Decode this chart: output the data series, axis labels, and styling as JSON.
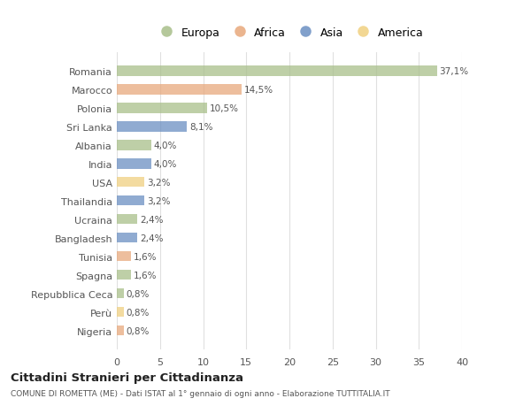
{
  "countries": [
    "Romania",
    "Marocco",
    "Polonia",
    "Sri Lanka",
    "Albania",
    "India",
    "USA",
    "Thailandia",
    "Ucraina",
    "Bangladesh",
    "Tunisia",
    "Spagna",
    "Repubblica Ceca",
    "Perù",
    "Nigeria"
  ],
  "values": [
    37.1,
    14.5,
    10.5,
    8.1,
    4.0,
    4.0,
    3.2,
    3.2,
    2.4,
    2.4,
    1.6,
    1.6,
    0.8,
    0.8,
    0.8
  ],
  "labels": [
    "37,1%",
    "14,5%",
    "10,5%",
    "8,1%",
    "4,0%",
    "4,0%",
    "3,2%",
    "3,2%",
    "2,4%",
    "2,4%",
    "1,6%",
    "1,6%",
    "0,8%",
    "0,8%",
    "0,8%"
  ],
  "colors": [
    "#a8bf8a",
    "#e8a87c",
    "#a8bf8a",
    "#6b8fc2",
    "#a8bf8a",
    "#6b8fc2",
    "#f0d080",
    "#6b8fc2",
    "#a8bf8a",
    "#6b8fc2",
    "#e8a87c",
    "#a8bf8a",
    "#a8bf8a",
    "#f0d080",
    "#e8a87c"
  ],
  "legend_names": [
    "Europa",
    "Africa",
    "Asia",
    "America"
  ],
  "legend_colors": [
    "#a8bf8a",
    "#e8a87c",
    "#6b8fc2",
    "#f0d080"
  ],
  "title": "Cittadini Stranieri per Cittadinanza",
  "subtitle": "COMUNE DI ROMETTA (ME) - Dati ISTAT al 1° gennaio di ogni anno - Elaborazione TUTTITALIA.IT",
  "xlim": [
    0,
    40
  ],
  "xticks": [
    0,
    5,
    10,
    15,
    20,
    25,
    30,
    35,
    40
  ],
  "bg_color": "#ffffff",
  "grid_color": "#e0e0e0",
  "bar_height": 0.55
}
